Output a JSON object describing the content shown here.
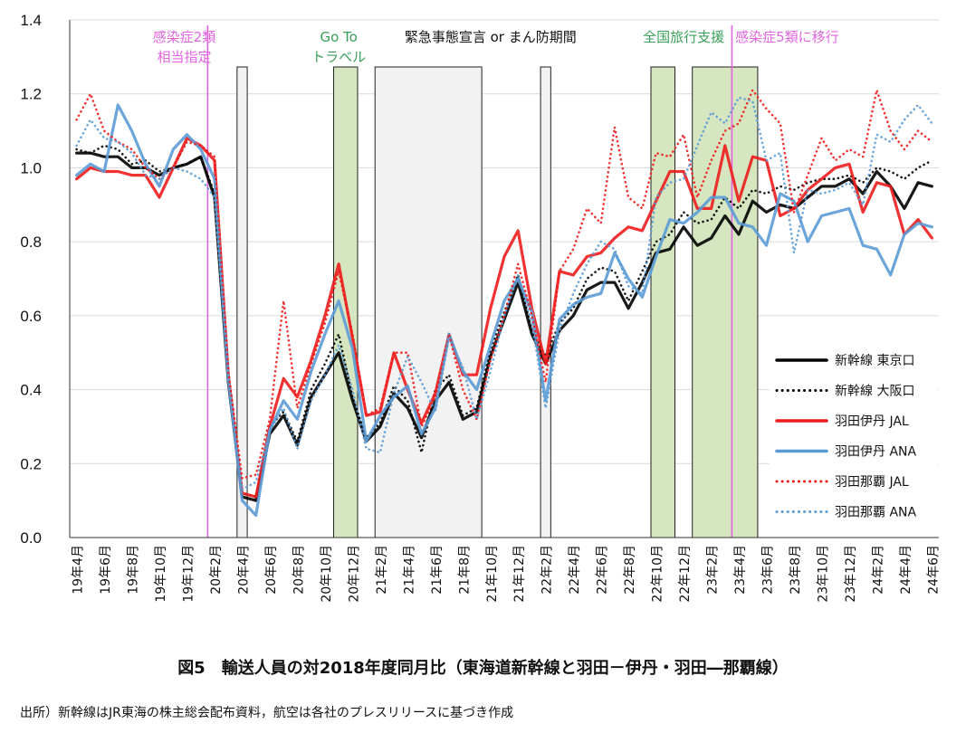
{
  "caption": "図5　輸送人員の対2018年度同月比（東海道新幹線と羽田－伊丹・羽田―那覇線）",
  "source": "出所）新幹線はJR東海の株主総会配布資料，航空は各社のプレスリリースに基づき作成",
  "chart_data": {
    "type": "line",
    "ylim": [
      0,
      1.4
    ],
    "yticks": [
      "0.0",
      "0.2",
      "0.4",
      "0.6",
      "0.8",
      "1.0",
      "1.2",
      "1.4"
    ],
    "x": [
      "19年4月",
      "19年5月",
      "19年6月",
      "19年7月",
      "19年8月",
      "19年9月",
      "19年10月",
      "19年11月",
      "19年12月",
      "20年1月",
      "20年2月",
      "20年3月",
      "20年4月",
      "20年5月",
      "20年6月",
      "20年7月",
      "20年8月",
      "20年9月",
      "20年10月",
      "20年11月",
      "20年12月",
      "21年1月",
      "21年2月",
      "21年3月",
      "21年4月",
      "21年5月",
      "21年6月",
      "21年7月",
      "21年8月",
      "21年9月",
      "21年10月",
      "21年11月",
      "21年12月",
      "22年1月",
      "22年2月",
      "22年3月",
      "22年4月",
      "22年5月",
      "22年6月",
      "22年7月",
      "22年8月",
      "22年9月",
      "22年10月",
      "22年11月",
      "22年12月",
      "23年1月",
      "23年2月",
      "23年3月",
      "23年4月",
      "23年5月",
      "23年6月",
      "23年7月",
      "23年8月",
      "23年9月",
      "23年10月",
      "23年11月",
      "23年12月",
      "24年1月",
      "24年2月",
      "24年3月",
      "24年4月",
      "24年5月",
      "24年6月"
    ],
    "xtick_labels": [
      "19年4月",
      "19年6月",
      "19年8月",
      "19年10月",
      "19年12月",
      "20年2月",
      "20年4月",
      "20年6月",
      "20年8月",
      "20年10月",
      "20年12月",
      "21年2月",
      "21年4月",
      "21年6月",
      "21年8月",
      "21年10月",
      "21年12月",
      "22年2月",
      "22年4月",
      "22年6月",
      "22年8月",
      "22年10月",
      "22年12月",
      "23年2月",
      "23年4月",
      "23年6月",
      "23年8月",
      "23年10月",
      "23年12月",
      "24年2月",
      "24年4月",
      "24年6月"
    ],
    "series": [
      {
        "name": "新幹線 東京口",
        "color": "#000000",
        "style": "solid",
        "values": [
          1.04,
          1.04,
          1.03,
          1.03,
          1.0,
          1.0,
          0.98,
          1.0,
          1.01,
          1.03,
          0.92,
          0.42,
          0.11,
          0.1,
          0.28,
          0.33,
          0.25,
          0.38,
          0.44,
          0.5,
          0.37,
          0.26,
          0.3,
          0.39,
          0.35,
          0.27,
          0.37,
          0.42,
          0.32,
          0.34,
          0.49,
          0.59,
          0.69,
          0.55,
          0.47,
          0.56,
          0.6,
          0.67,
          0.69,
          0.69,
          0.62,
          0.69,
          0.77,
          0.78,
          0.84,
          0.79,
          0.81,
          0.87,
          0.82,
          0.91,
          0.88,
          0.9,
          0.89,
          0.92,
          0.95,
          0.95,
          0.97,
          0.93,
          0.99,
          0.95,
          0.89,
          0.96,
          0.95
        ]
      },
      {
        "name": "新幹線 大阪口",
        "color": "#000000",
        "style": "dotted",
        "values": [
          1.05,
          1.04,
          1.06,
          1.05,
          1.01,
          1.02,
          0.99,
          1.0,
          1.01,
          1.03,
          0.93,
          0.43,
          0.12,
          0.11,
          0.3,
          0.34,
          0.26,
          0.4,
          0.47,
          0.55,
          0.38,
          0.27,
          0.31,
          0.41,
          0.37,
          0.23,
          0.4,
          0.44,
          0.33,
          0.35,
          0.51,
          0.61,
          0.71,
          0.56,
          0.49,
          0.58,
          0.62,
          0.7,
          0.73,
          0.72,
          0.64,
          0.72,
          0.8,
          0.82,
          0.88,
          0.85,
          0.86,
          0.92,
          0.89,
          0.94,
          0.93,
          0.95,
          0.94,
          0.96,
          0.97,
          0.97,
          0.98,
          0.96,
          1.0,
          0.99,
          0.97,
          1.0,
          1.02
        ]
      },
      {
        "name": "羽田伊丹 JAL",
        "color": "#ee1c1c",
        "style": "solid",
        "values": [
          0.97,
          1.0,
          0.99,
          0.99,
          0.98,
          0.98,
          0.92,
          1.0,
          1.08,
          1.06,
          1.02,
          0.44,
          0.12,
          0.11,
          0.3,
          0.43,
          0.38,
          0.48,
          0.6,
          0.74,
          0.54,
          0.33,
          0.34,
          0.5,
          0.4,
          0.31,
          0.39,
          0.55,
          0.44,
          0.44,
          0.62,
          0.76,
          0.83,
          0.62,
          0.47,
          0.72,
          0.71,
          0.76,
          0.77,
          0.81,
          0.84,
          0.83,
          0.91,
          0.99,
          0.99,
          0.89,
          0.89,
          1.06,
          0.91,
          1.03,
          1.02,
          0.87,
          0.89,
          0.94,
          0.97,
          1.0,
          1.01,
          0.88,
          0.96,
          0.95,
          0.82,
          0.86,
          0.81
        ]
      },
      {
        "name": "羽田伊丹 ANA",
        "color": "#5b9bd5",
        "style": "solid",
        "values": [
          0.98,
          1.01,
          0.99,
          1.17,
          1.1,
          1.01,
          0.95,
          1.05,
          1.09,
          1.05,
          0.97,
          0.43,
          0.1,
          0.06,
          0.29,
          0.37,
          0.32,
          0.45,
          0.55,
          0.64,
          0.51,
          0.26,
          0.33,
          0.38,
          0.41,
          0.28,
          0.35,
          0.55,
          0.45,
          0.4,
          0.52,
          0.64,
          0.7,
          0.61,
          0.37,
          0.59,
          0.63,
          0.65,
          0.66,
          0.77,
          0.7,
          0.65,
          0.76,
          0.86,
          0.85,
          0.88,
          0.92,
          0.92,
          0.85,
          0.84,
          0.79,
          0.93,
          0.91,
          0.8,
          0.87,
          0.88,
          0.89,
          0.79,
          0.78,
          0.71,
          0.82,
          0.85,
          0.84
        ]
      },
      {
        "name": "羽田那覇 JAL",
        "color": "#ee1c1c",
        "style": "dotted",
        "values": [
          1.13,
          1.2,
          1.1,
          1.07,
          1.05,
          1.0,
          0.97,
          1.0,
          1.07,
          1.06,
          1.03,
          0.45,
          0.16,
          0.17,
          0.32,
          0.64,
          0.35,
          0.47,
          0.58,
          0.72,
          0.55,
          0.33,
          0.35,
          0.5,
          0.5,
          0.3,
          0.38,
          0.55,
          0.4,
          0.32,
          0.48,
          0.6,
          0.74,
          0.6,
          0.42,
          0.72,
          0.78,
          0.89,
          0.85,
          1.11,
          0.92,
          0.89,
          1.04,
          1.03,
          1.09,
          0.92,
          1.02,
          1.1,
          1.12,
          1.21,
          1.16,
          1.12,
          0.88,
          0.98,
          1.08,
          1.02,
          1.05,
          1.03,
          1.21,
          1.1,
          1.05,
          1.1,
          1.07
        ]
      },
      {
        "name": "羽田那覇 ANA",
        "color": "#5b9bd5",
        "style": "dotted",
        "values": [
          1.06,
          1.13,
          1.08,
          1.07,
          1.04,
          0.98,
          0.97,
          1.0,
          0.99,
          0.97,
          0.92,
          0.43,
          0.13,
          0.15,
          0.29,
          0.35,
          0.24,
          0.37,
          0.44,
          0.52,
          0.4,
          0.24,
          0.23,
          0.39,
          0.49,
          0.42,
          0.34,
          0.54,
          0.46,
          0.32,
          0.45,
          0.6,
          0.71,
          0.58,
          0.35,
          0.56,
          0.66,
          0.74,
          0.8,
          0.78,
          0.68,
          0.66,
          0.92,
          0.96,
          0.97,
          1.06,
          1.15,
          1.12,
          1.19,
          1.18,
          1.02,
          1.04,
          0.77,
          0.94,
          0.93,
          0.94,
          0.96,
          0.9,
          1.09,
          1.07,
          1.13,
          1.17,
          1.12
        ]
      }
    ],
    "shaded_periods": [
      {
        "kind": "emergency",
        "start": 12,
        "end": 12,
        "fill": "#f2f2f2"
      },
      {
        "kind": "goto",
        "start": 19,
        "end": 20,
        "fill": "#d5e6c0"
      },
      {
        "kind": "emergency",
        "start": 22,
        "end": 29,
        "fill": "#f2f2f2"
      },
      {
        "kind": "emergency",
        "start": 34,
        "end": 34,
        "fill": "#f2f2f2"
      },
      {
        "kind": "national",
        "start": 42,
        "end": 43,
        "fill": "#d5e6c0"
      },
      {
        "kind": "national",
        "start": 45,
        "end": 49,
        "fill": "#d5e6c0"
      }
    ],
    "vlines": [
      {
        "at": 10,
        "color": "#e066e0"
      },
      {
        "at": 48,
        "color": "#e066e0"
      }
    ],
    "annotations": [
      {
        "lines": [
          "感染症2類",
          "相当指定"
        ],
        "color": "#e066e0",
        "at": 8.3
      },
      {
        "lines": [
          "Go To",
          "トラベル"
        ],
        "color": "#3aa05a",
        "at": 19.5
      },
      {
        "lines": [
          "緊急事態宣言 or まん防期間"
        ],
        "color": "#111111",
        "at": 30.5
      },
      {
        "lines": [
          "全国旅行支援"
        ],
        "color": "#3aa05a",
        "at": 44.5
      },
      {
        "lines": [
          "感染症5類に移行"
        ],
        "color": "#e066e0",
        "at": 52
      }
    ],
    "legend_position": "bottom-right"
  }
}
